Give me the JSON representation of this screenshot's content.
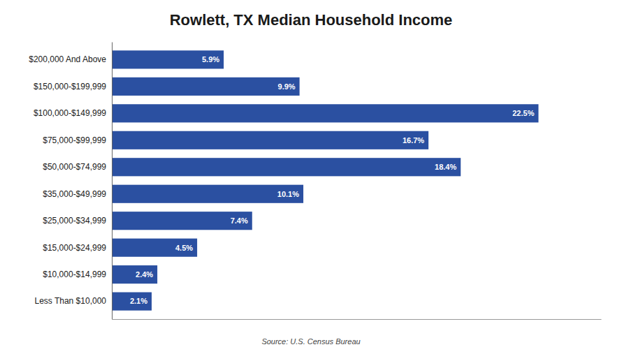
{
  "chart_data": {
    "type": "bar",
    "orientation": "horizontal",
    "title": "Rowlett, TX Median Household Income",
    "source": "Source: U.S. Census Bureau",
    "categories": [
      "Less Than $10,000",
      "$10,000-$14,999",
      "$15,000-$24,999",
      "$25,000-$34,999",
      "$35,000-$49,999",
      "$50,000-$74,999",
      "$75,000-$99,999",
      "$100,000-$149,999",
      "$150,000-$199,999",
      "$200,000 And Above"
    ],
    "values": [
      2.1,
      2.4,
      4.5,
      7.4,
      10.1,
      18.4,
      16.7,
      22.5,
      9.9,
      5.9
    ],
    "value_labels": [
      "2.1%",
      "2.4%",
      "4.5%",
      "7.4%",
      "10.1%",
      "18.4%",
      "16.7%",
      "22.5%",
      "9.9%",
      "5.9%"
    ],
    "data_labels": true,
    "color": "#2B50A1",
    "xlim": [
      0,
      25.8
    ],
    "xticks": [],
    "tick_labels": "y",
    "grid": false
  }
}
